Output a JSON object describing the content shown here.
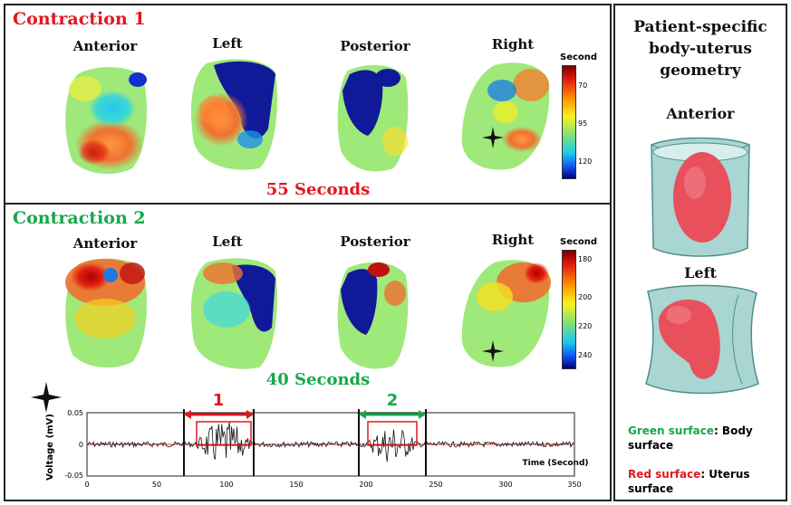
{
  "contraction1": {
    "title": "Contraction 1",
    "views": [
      "Anterior",
      "Left",
      "Posterior",
      "Right"
    ],
    "caption": "55 Seconds",
    "colorbar": {
      "title": "Second",
      "ticks": [
        "70",
        "95",
        "120"
      ]
    }
  },
  "contraction2": {
    "title": "Contraction 2",
    "views": [
      "Anterior",
      "Left",
      "Posterior",
      "Right"
    ],
    "caption": "40 Seconds",
    "colorbar": {
      "title": "Second",
      "ticks": [
        "180",
        "200",
        "220",
        "240"
      ]
    }
  },
  "signal": {
    "ylabel": "Voltage (mV)",
    "xlabel": "Time (Second)",
    "y_ticks": [
      "0.05",
      "0",
      "-0.05"
    ],
    "x_ticks": [
      "0",
      "50",
      "100",
      "150",
      "200",
      "250",
      "300",
      "350"
    ],
    "burst1_label": "1",
    "burst2_label": "2",
    "colors": {
      "burst1": "#e0181e",
      "burst2": "#16a84a",
      "trace": "#111111",
      "baseline": "#d33"
    }
  },
  "geometry": {
    "title_lines": [
      "Patient-specific",
      "body-uterus",
      "geometry"
    ],
    "view1": "Anterior",
    "view2": "Left",
    "legend_green_key": "Green surface",
    "legend_green_rest": ": Body surface",
    "legend_red_key": "Red surface",
    "legend_red_rest": ": Uterus surface",
    "colors": {
      "body": "#a9d6d2",
      "uterus": "#e8505b"
    }
  }
}
